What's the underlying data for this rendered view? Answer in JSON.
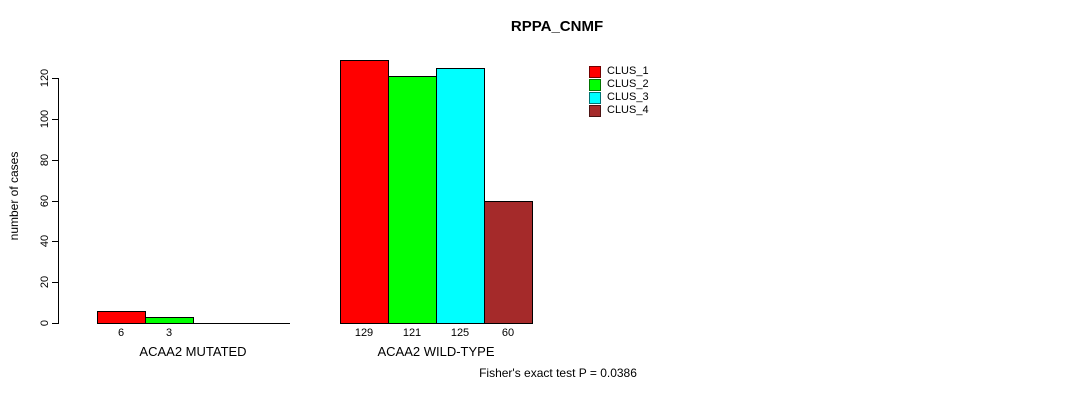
{
  "title": "RPPA_CNMF",
  "footer": "Fisher's exact test P = 0.0386",
  "chart_data": {
    "type": "bar",
    "title": "RPPA_CNMF",
    "xlabel": "",
    "ylabel": "number of cases",
    "ylim": [
      0,
      120
    ],
    "yticks": [
      0,
      20,
      40,
      60,
      80,
      100,
      120
    ],
    "categories": [
      "ACAA2 MUTATED",
      "ACAA2 WILD-TYPE"
    ],
    "series": [
      {
        "name": "CLUS_1",
        "color": "#ff0000",
        "values": [
          6,
          129
        ]
      },
      {
        "name": "CLUS_2",
        "color": "#00ff00",
        "values": [
          3,
          121
        ]
      },
      {
        "name": "CLUS_3",
        "color": "#00ffff",
        "values": [
          0,
          125
        ]
      },
      {
        "name": "CLUS_4",
        "color": "#a52a2a",
        "values": [
          0,
          60
        ]
      }
    ],
    "bar_value_labels_shown_when_nonzero": true,
    "grid": "off",
    "legend_position": "top-right-inside",
    "annotation": "Fisher's exact test P = 0.0386"
  }
}
